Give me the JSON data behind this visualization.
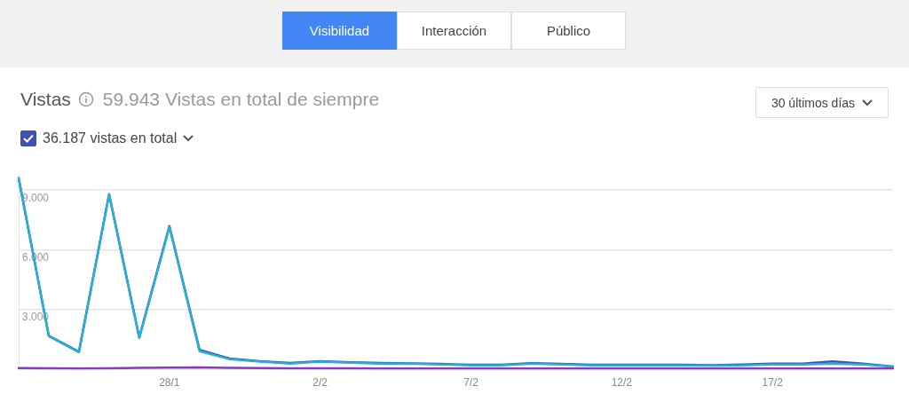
{
  "chart_data": {
    "type": "line",
    "title": "Vistas",
    "subtitle": "59.943 Vistas en total de siempre",
    "annotations": [
      "Visibilidad",
      "Interacción",
      "Público",
      "30 últimos días",
      "36.187 vistas en total"
    ],
    "categories": [
      null,
      null,
      null,
      null,
      null,
      "28/1",
      null,
      null,
      null,
      null,
      "2/2",
      null,
      null,
      null,
      null,
      "7/2",
      null,
      null,
      null,
      null,
      "12/2",
      null,
      null,
      null,
      null,
      "17/2",
      null,
      null,
      null,
      null
    ],
    "series": [
      {
        "color": "#3f51b5",
        "values": [
          9600,
          1700,
          900,
          8800,
          1620,
          7200,
          1000,
          560,
          430,
          340,
          430,
          370,
          340,
          320,
          290,
          250,
          250,
          330,
          290,
          250,
          250,
          250,
          250,
          230,
          260,
          300,
          300,
          420,
          300,
          160
        ]
      },
      {
        "color": "#26b1d4",
        "values": [
          9600,
          1680,
          880,
          8780,
          1590,
          7150,
          930,
          530,
          400,
          310,
          400,
          350,
          310,
          300,
          260,
          220,
          220,
          300,
          260,
          220,
          220,
          220,
          220,
          200,
          220,
          260,
          260,
          300,
          260,
          150
        ]
      },
      {
        "color": "#8e35c2",
        "values": [
          80,
          70,
          60,
          70,
          90,
          100,
          120,
          90,
          80,
          70,
          70,
          70,
          60,
          60,
          60,
          60,
          60,
          60,
          60,
          60,
          60,
          60,
          60,
          60,
          60,
          60,
          60,
          60,
          60,
          60
        ]
      }
    ],
    "ylim": [
      0,
      9800
    ],
    "yticks": [
      {
        "value": 3000,
        "label": "3.000"
      },
      {
        "value": 6000,
        "label": "6.000"
      },
      {
        "value": 9000,
        "label": "9.000"
      }
    ],
    "grid": "y",
    "legend": false,
    "marker": "none",
    "line_style": "solid"
  }
}
